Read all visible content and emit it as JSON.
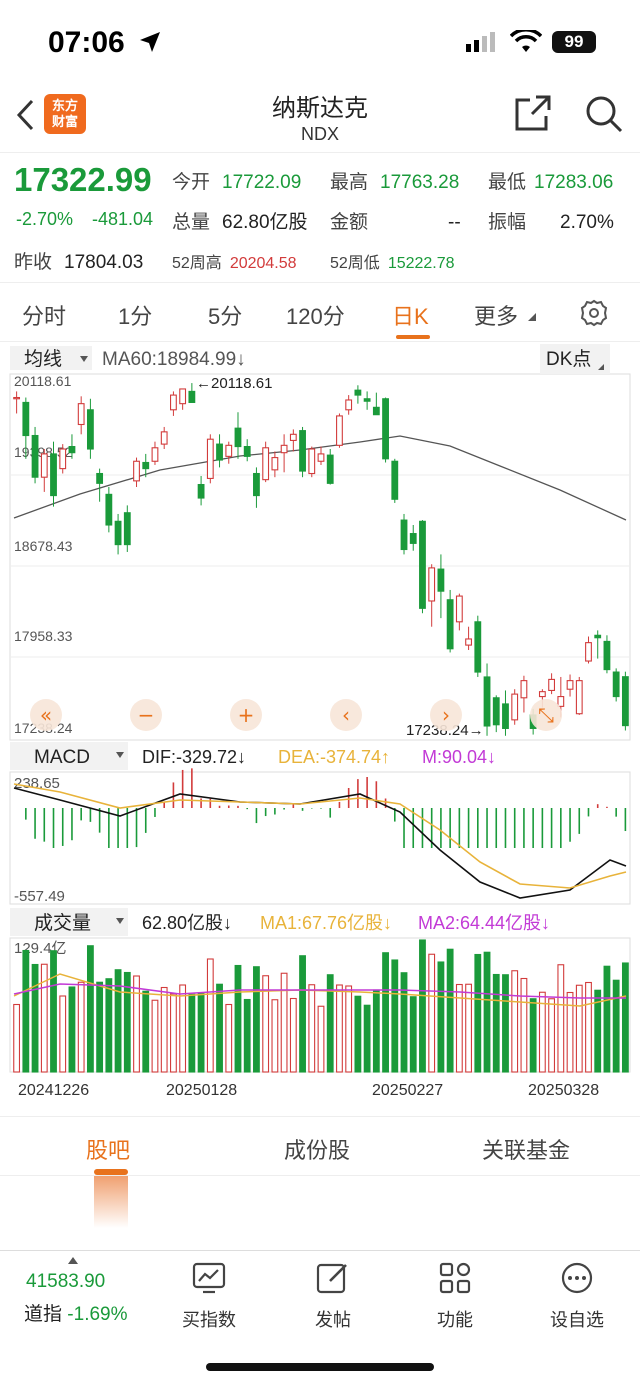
{
  "status": {
    "time": "07:06",
    "battery": "99"
  },
  "header": {
    "logo_line1": "东方",
    "logo_line2": "财富",
    "title": "纳斯达克",
    "code": "NDX"
  },
  "quote": {
    "price": "17322.99",
    "change_pct": "-2.70%",
    "change_abs": "-481.04",
    "open_label": "今开",
    "open": "17722.09",
    "high_label": "最高",
    "high": "17763.28",
    "low_label": "最低",
    "low": "17283.06",
    "volume_label": "总量",
    "volume": "62.80亿股",
    "amount_label": "金额",
    "amount": "--",
    "amplitude_label": "振幅",
    "amplitude": "2.70%",
    "prev_close_label": "昨收",
    "prev_close": "17804.03",
    "w52_high_label": "52周高",
    "w52_high": "20204.58",
    "w52_low_label": "52周低",
    "w52_low": "15222.78"
  },
  "periods": [
    "分时",
    "1分",
    "5分",
    "120分",
    "日K",
    "更多"
  ],
  "active_period": "日K",
  "chart_data": {
    "type": "candlestick",
    "main_indicator": {
      "label": "均线",
      "text": "MA60:18984.99",
      "arrow": "↓"
    },
    "dk_label": "DK点",
    "price_ticks": [
      "20118.61",
      "19398.52",
      "18678.43",
      "17958.33",
      "17238.24"
    ],
    "max_marker": "20118.61",
    "min_marker": "17238.24",
    "candles": [
      [
        19990,
        20050,
        19870,
        20000
      ],
      [
        19960,
        20000,
        19500,
        19690
      ],
      [
        19690,
        19760,
        19300,
        19350
      ],
      [
        19350,
        19580,
        19230,
        19540
      ],
      [
        19540,
        19640,
        19110,
        19200
      ],
      [
        19420,
        19620,
        19380,
        19580
      ],
      [
        19600,
        19700,
        19500,
        19550
      ],
      [
        19780,
        20010,
        19700,
        19950
      ],
      [
        19900,
        19990,
        19500,
        19580
      ],
      [
        19380,
        19420,
        19150,
        19300
      ],
      [
        19210,
        19270,
        18900,
        18960
      ],
      [
        18990,
        19050,
        18720,
        18800
      ],
      [
        19060,
        19120,
        18740,
        18800
      ],
      [
        19320,
        19510,
        19270,
        19480
      ],
      [
        19470,
        19540,
        19350,
        19420
      ],
      [
        19480,
        19640,
        19450,
        19590
      ],
      [
        19620,
        19760,
        19580,
        19720
      ],
      [
        19900,
        20050,
        19850,
        20020
      ],
      [
        19950,
        20060,
        19900,
        20070
      ],
      [
        20050,
        20118,
        19960,
        19960
      ],
      [
        19290,
        19360,
        19120,
        19180
      ],
      [
        19340,
        19700,
        19300,
        19660
      ],
      [
        19620,
        19700,
        19430,
        19490
      ],
      [
        19520,
        19640,
        19460,
        19610
      ],
      [
        19750,
        19880,
        19500,
        19600
      ],
      [
        19600,
        19660,
        19480,
        19520
      ],
      [
        19380,
        19430,
        19100,
        19200
      ],
      [
        19330,
        19640,
        19310,
        19590
      ],
      [
        19410,
        19560,
        19350,
        19510
      ],
      [
        19550,
        19700,
        19390,
        19610
      ],
      [
        19650,
        19740,
        19560,
        19700
      ],
      [
        19730,
        19760,
        19350,
        19400
      ],
      [
        19380,
        19600,
        19350,
        19580
      ],
      [
        19480,
        19600,
        19450,
        19540
      ],
      [
        19530,
        19580,
        19290,
        19300
      ],
      [
        19610,
        19870,
        19590,
        19850
      ],
      [
        19900,
        20020,
        19860,
        19980
      ],
      [
        20060,
        20100,
        19950,
        20020
      ],
      [
        19990,
        20050,
        19900,
        19970
      ],
      [
        19920,
        20040,
        19880,
        19860
      ],
      [
        19990,
        20000,
        19470,
        19500
      ],
      [
        19480,
        19500,
        19140,
        19170
      ],
      [
        19000,
        19050,
        18720,
        18760
      ],
      [
        18890,
        18960,
        18750,
        18810
      ],
      [
        18990,
        19000,
        18240,
        18280
      ],
      [
        18340,
        18640,
        18130,
        18610
      ],
      [
        18600,
        18720,
        18200,
        18420
      ],
      [
        18350,
        18430,
        17920,
        17950
      ],
      [
        18170,
        18400,
        18100,
        18380
      ],
      [
        17980,
        18130,
        17940,
        18030
      ],
      [
        18170,
        18220,
        17720,
        17760
      ],
      [
        17720,
        17830,
        17240,
        17320
      ],
      [
        17550,
        17570,
        17270,
        17330
      ],
      [
        17500,
        17610,
        17240,
        17300
      ],
      [
        17370,
        17620,
        17330,
        17580
      ],
      [
        17550,
        17730,
        17430,
        17690
      ],
      [
        17410,
        17460,
        17250,
        17300
      ],
      [
        17560,
        17620,
        17470,
        17600
      ],
      [
        17610,
        17750,
        17580,
        17700
      ],
      [
        17480,
        17720,
        17390,
        17560
      ],
      [
        17620,
        17740,
        17560,
        17690
      ],
      [
        17420,
        17720,
        17410,
        17690
      ],
      [
        17850,
        18050,
        17830,
        18000
      ],
      [
        18060,
        18100,
        17870,
        18040
      ],
      [
        18010,
        18060,
        17750,
        17780
      ],
      [
        17760,
        17790,
        17520,
        17560
      ],
      [
        17722,
        17763,
        17283,
        17323
      ]
    ],
    "macd": {
      "label": "MACD",
      "dif": "DIF:-329.72",
      "dea": "DEA:-374.74",
      "m": "M:90.04",
      "top": "238.65",
      "bottom": "-557.49"
    },
    "volume": {
      "label": "成交量",
      "value": "62.80亿股",
      "ma1": "MA1:67.76亿股",
      "ma2": "MA2:64.44亿股",
      "top": "129.4亿"
    },
    "dates": [
      "20241226",
      "20250128",
      "20250227",
      "20250328"
    ],
    "colors": {
      "up": "#d23b3b",
      "down": "#1a9a3a",
      "ma60": "#555555",
      "dea": "#e8b33a",
      "m": "#c23ad6"
    }
  },
  "lower_tabs": [
    "股吧",
    "成份股",
    "关联基金"
  ],
  "bottom": {
    "index_value": "41583.90",
    "index_name": "道指",
    "index_pct": "-1.69%",
    "items": [
      {
        "label": "买指数",
        "icon": "chart-up-icon"
      },
      {
        "label": "发帖",
        "icon": "edit-icon"
      },
      {
        "label": "功能",
        "icon": "grid-icon"
      },
      {
        "label": "设自选",
        "icon": "more-icon"
      }
    ]
  }
}
